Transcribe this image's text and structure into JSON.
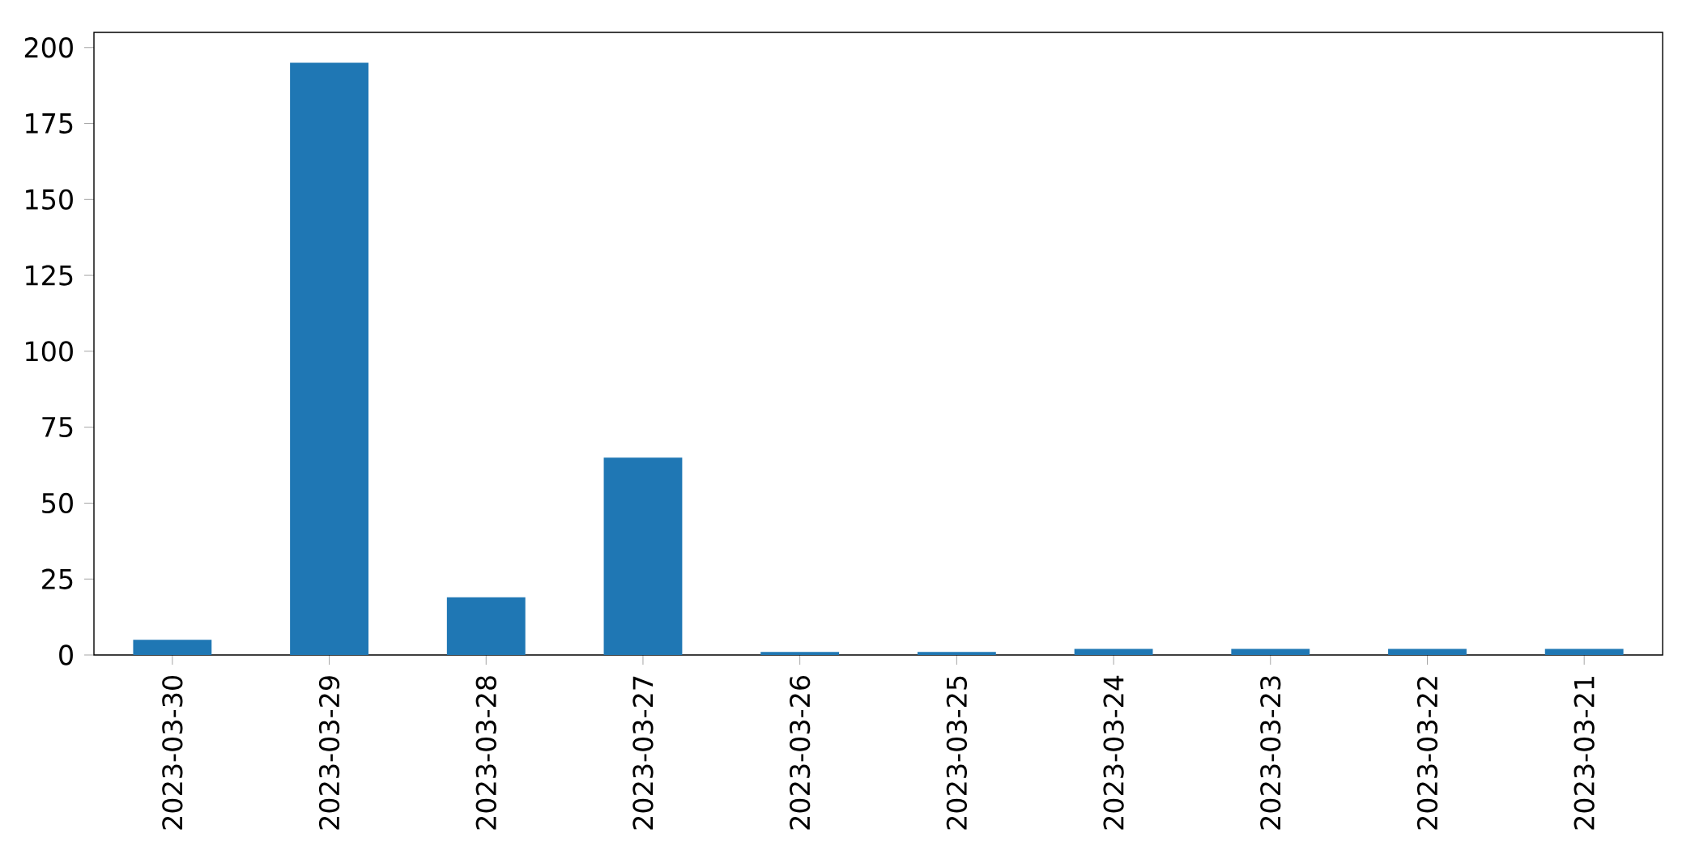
{
  "chart_data": {
    "type": "bar",
    "categories": [
      "2023-03-30",
      "2023-03-29",
      "2023-03-28",
      "2023-03-27",
      "2023-03-26",
      "2023-03-25",
      "2023-03-24",
      "2023-03-23",
      "2023-03-22",
      "2023-03-21"
    ],
    "values": [
      5,
      195,
      19,
      65,
      1,
      1,
      2,
      2,
      2,
      2
    ],
    "color": "#1f77b4",
    "ylim": [
      0,
      205
    ],
    "yticks": [
      0,
      25,
      50,
      75,
      100,
      125,
      150,
      175,
      200
    ],
    "grid": false
  }
}
